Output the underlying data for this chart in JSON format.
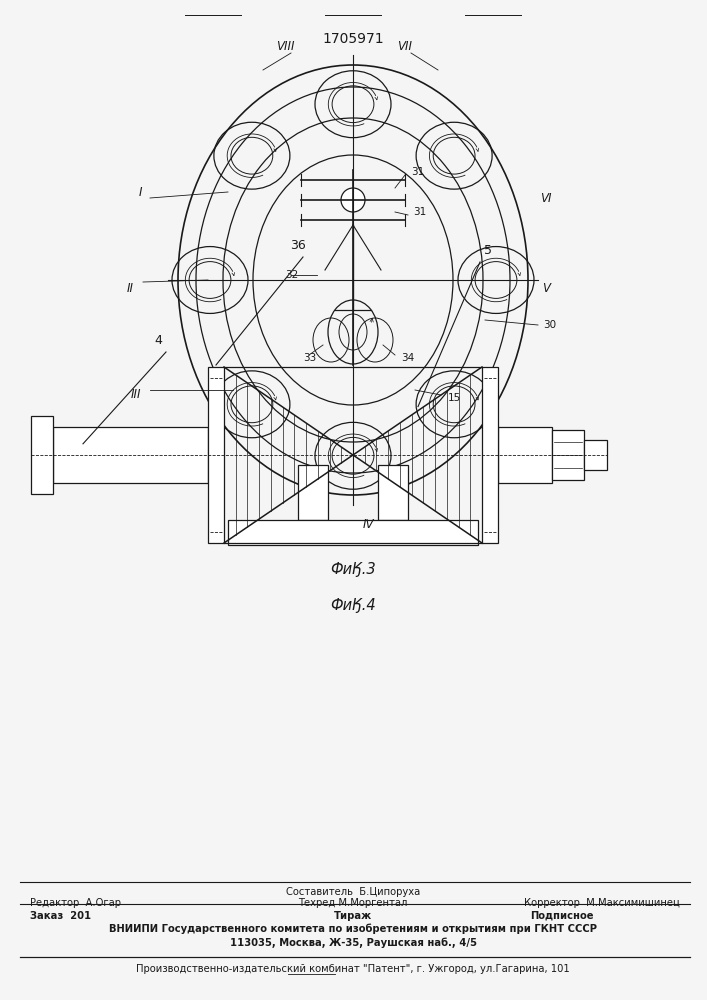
{
  "patent_number": "1705971",
  "fig3_label": "ФиӃ.3",
  "fig4_label": "ФиӃ.4",
  "bg_color": "#f5f5f5",
  "line_color": "#1a1a1a",
  "footer_sestavitel": "Составитель  Б.Ципоруха",
  "footer_redaktor": "Редактор  А.Огар",
  "footer_tehred": "Техред М.Моргентал",
  "footer_korrektor": "Корректор  М.Максимишинец",
  "footer_zakaz": "Заказ  201",
  "footer_tirazh": "Тираж",
  "footer_podpisnoe": "Подписное",
  "footer_vniiipi": "ВНИИПИ Государственного комитета по изобретениям и открытиям при ГКНТ СССР",
  "footer_addr": "113035, Москва, Ж-35, Раушская наб., 4/5",
  "footer_kombinat": "Производственно-издательский комбинат \"Патент\", г. Ужгород, ул.Гагарина, 101"
}
